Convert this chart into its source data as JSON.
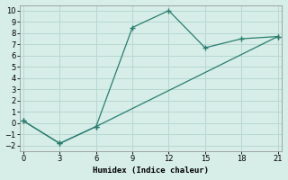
{
  "line1_x": [
    0,
    3,
    6,
    9,
    12,
    15,
    18,
    21
  ],
  "line1_y": [
    0.2,
    -1.8,
    -0.3,
    8.5,
    10.0,
    6.7,
    7.5,
    7.7
  ],
  "line2_x": [
    0,
    3,
    6,
    21
  ],
  "line2_y": [
    0.2,
    -1.8,
    -0.3,
    7.7
  ],
  "color": "#2a7d6f",
  "xlabel": "Humidex (Indice chaleur)",
  "xlim": [
    -0.3,
    21.3
  ],
  "ylim": [
    -2.5,
    10.5
  ],
  "xticks": [
    0,
    3,
    6,
    9,
    12,
    15,
    18,
    21
  ],
  "yticks": [
    -2,
    -1,
    0,
    1,
    2,
    3,
    4,
    5,
    6,
    7,
    8,
    9,
    10
  ],
  "bg_color": "#d6ede8",
  "grid_color": "#b8d8d0"
}
